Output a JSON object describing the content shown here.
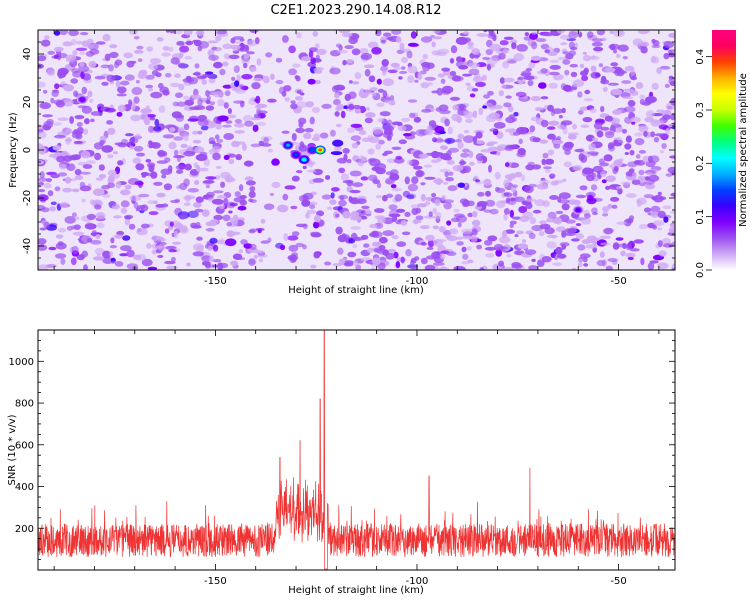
{
  "title": "C2E1.2023.290.14.08.R12",
  "chart_data": [
    {
      "type": "heatmap",
      "name": "spectrogram",
      "xlabel": "Height of straight line (km)",
      "ylabel": "Frequency (Hz)",
      "xlim": [
        -194,
        -36
      ],
      "ylim": [
        -50,
        50
      ],
      "xticks": [
        -150,
        -100,
        -50
      ],
      "yticks": [
        -40,
        -20,
        0,
        20,
        40
      ],
      "colorbar": {
        "label": "Normalized spectral amplitude",
        "range": [
          0,
          0.45
        ],
        "ticks": [
          "0.0",
          "0.1",
          "0.2",
          "0.3",
          "0.4"
        ],
        "tick_values": [
          0,
          0.1,
          0.2,
          0.3,
          0.4
        ],
        "colors": [
          "#ffffff",
          "#cfa8f5",
          "#9b4ff0",
          "#7f00ff",
          "#3a00ff",
          "#0040ff",
          "#00b0ff",
          "#00ffff",
          "#00ff7f",
          "#40ff00",
          "#c8ff00",
          "#ffff00",
          "#ffb000",
          "#ff4000",
          "#ff0060",
          "#ff0080"
        ]
      },
      "background_level": 0.06,
      "peaks": [
        {
          "x": -132,
          "y": 2,
          "value": 0.18
        },
        {
          "x": -130,
          "y": -2,
          "value": 0.14
        },
        {
          "x": -128,
          "y": -4,
          "value": 0.22
        },
        {
          "x": -126,
          "y": 0,
          "value": 0.16
        },
        {
          "x": -124,
          "y": 0,
          "value": 0.4
        },
        {
          "x": -60,
          "y": -25,
          "value": 0.12
        },
        {
          "x": -183,
          "y": 21,
          "value": 0.1
        }
      ]
    },
    {
      "type": "line",
      "name": "snr",
      "xlabel": "Height of straight line (km)",
      "ylabel": "SNR (10 * v/v)",
      "xlim": [
        -194,
        -36
      ],
      "ylim": [
        0,
        1150
      ],
      "xticks": [
        -150,
        -100,
        -50
      ],
      "yticks": [
        200,
        400,
        600,
        800,
        1000
      ],
      "color": "#ee3333",
      "noise_floor": 110,
      "noise_amplitude": 160,
      "notable_points": [
        {
          "x": -134,
          "y": 540
        },
        {
          "x": -129,
          "y": 620
        },
        {
          "x": -124,
          "y": 820
        },
        {
          "x": -123,
          "y": 1150
        },
        {
          "x": -97,
          "y": 450
        },
        {
          "x": -72,
          "y": 490
        }
      ]
    }
  ]
}
